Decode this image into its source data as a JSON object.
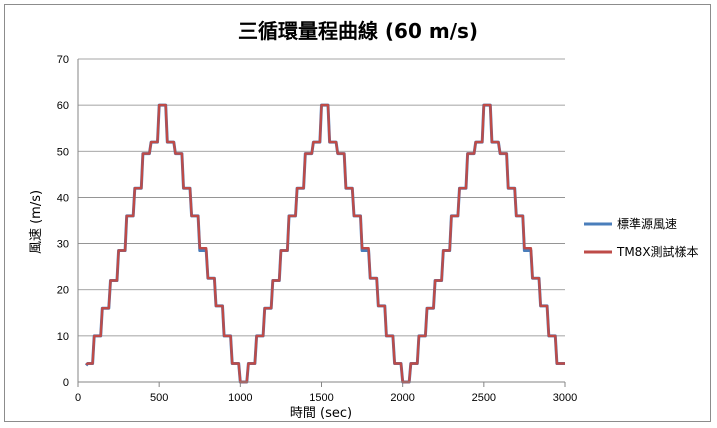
{
  "chart_data": {
    "type": "line",
    "title": "三循環量程曲線 (60 m/s)",
    "xlabel": "時間 (sec)",
    "ylabel": "風速 (m/s)",
    "xlim": [
      0,
      3000
    ],
    "ylim": [
      0,
      70
    ],
    "xticks": [
      "0",
      "500",
      "1000",
      "1500",
      "2000",
      "2500",
      "3000"
    ],
    "yticks": [
      "0",
      "10",
      "20",
      "30",
      "40",
      "50",
      "60",
      "70"
    ],
    "grid": "horizontal",
    "legend": "right",
    "colors": {
      "series1": "#4a7ebb",
      "series2": "#be4b48"
    },
    "series": [
      {
        "name": "標準源風速",
        "color": "#4a7ebb",
        "x": [
          50,
          60,
          90,
          100,
          140,
          150,
          190,
          200,
          240,
          250,
          290,
          300,
          340,
          350,
          390,
          400,
          440,
          450,
          490,
          500,
          540,
          550,
          590,
          600,
          640,
          650,
          690,
          700,
          740,
          750,
          790,
          800,
          840,
          850,
          890,
          900,
          940,
          950,
          990,
          1000,
          1040,
          1050,
          1090,
          1100,
          1140,
          1150,
          1190,
          1200,
          1240,
          1250,
          1290,
          1300,
          1340,
          1350,
          1390,
          1400,
          1440,
          1450,
          1490,
          1500,
          1540,
          1550,
          1590,
          1600,
          1640,
          1650,
          1690,
          1700,
          1740,
          1750,
          1790,
          1800,
          1840,
          1850,
          1890,
          1900,
          1940,
          1950,
          1990,
          2000,
          2040,
          2050,
          2090,
          2100,
          2140,
          2150,
          2190,
          2200,
          2240,
          2250,
          2290,
          2300,
          2340,
          2350,
          2390,
          2400,
          2440,
          2450,
          2490,
          2500,
          2540,
          2550,
          2590,
          2600,
          2640,
          2650,
          2690,
          2700,
          2740,
          2750,
          2790,
          2800,
          2840,
          2850,
          2890,
          2900,
          2940,
          2950,
          2990,
          3000
        ],
        "y": [
          3.6,
          4,
          4,
          10,
          10,
          16,
          16,
          22,
          22,
          28.5,
          28.5,
          36,
          36,
          42,
          42,
          49.5,
          49.5,
          52,
          52,
          60,
          60,
          52,
          52,
          49.5,
          49.5,
          42,
          42,
          36,
          36,
          28.5,
          28.5,
          22.5,
          22.5,
          16.5,
          16.5,
          10,
          10,
          4,
          4,
          0,
          0,
          4,
          4,
          10,
          10,
          16,
          16,
          22,
          22,
          28.5,
          28.5,
          36,
          36,
          42,
          42,
          49.5,
          49.5,
          52,
          52,
          60,
          60,
          52,
          52,
          49.5,
          49.5,
          42,
          42,
          36,
          36,
          28.5,
          28.5,
          22.5,
          22.5,
          16.5,
          16.5,
          10,
          10,
          4,
          4,
          0,
          0,
          4,
          4,
          10,
          10,
          16,
          16,
          22,
          22,
          28.5,
          28.5,
          36,
          36,
          42,
          42,
          49.5,
          49.5,
          52,
          52,
          60,
          60,
          52,
          52,
          49.5,
          49.5,
          42,
          42,
          36,
          36,
          28.5,
          28.5,
          22.5,
          22.5,
          16.5,
          16.5,
          10,
          10,
          4,
          4,
          4
        ]
      },
      {
        "name": "TM8X測試樣本",
        "color": "#be4b48",
        "x": [
          50,
          60,
          90,
          100,
          140,
          150,
          190,
          200,
          240,
          250,
          290,
          300,
          340,
          350,
          390,
          400,
          440,
          450,
          490,
          500,
          540,
          550,
          590,
          600,
          640,
          650,
          690,
          700,
          740,
          750,
          790,
          800,
          840,
          850,
          890,
          900,
          940,
          950,
          990,
          1000,
          1040,
          1050,
          1090,
          1100,
          1140,
          1150,
          1190,
          1200,
          1240,
          1250,
          1290,
          1300,
          1340,
          1350,
          1390,
          1400,
          1440,
          1450,
          1490,
          1500,
          1540,
          1550,
          1590,
          1600,
          1640,
          1650,
          1690,
          1700,
          1740,
          1750,
          1790,
          1800,
          1840,
          1850,
          1890,
          1900,
          1940,
          1950,
          1990,
          2000,
          2040,
          2050,
          2090,
          2100,
          2140,
          2150,
          2190,
          2200,
          2240,
          2250,
          2290,
          2300,
          2340,
          2350,
          2390,
          2400,
          2440,
          2450,
          2490,
          2500,
          2540,
          2550,
          2590,
          2600,
          2640,
          2650,
          2690,
          2700,
          2740,
          2750,
          2790,
          2800,
          2840,
          2850,
          2890,
          2900,
          2940,
          2950,
          2990,
          3000
        ],
        "y": [
          3.8,
          4,
          4,
          10,
          10,
          16,
          16,
          22,
          22,
          28.5,
          28.5,
          36,
          36,
          42,
          42,
          49.5,
          49.5,
          52,
          52,
          60,
          60,
          52,
          52,
          49.5,
          49.5,
          42,
          42,
          36,
          36,
          29,
          29,
          22.5,
          22.5,
          16.5,
          16.5,
          10,
          10,
          4,
          4,
          0,
          0,
          4,
          4,
          10,
          10,
          16,
          16,
          22,
          22,
          28.5,
          28.5,
          36,
          36,
          42,
          42,
          49.5,
          49.5,
          52,
          52,
          60,
          60,
          52,
          52,
          49.5,
          49.5,
          42,
          42,
          36,
          36,
          29,
          29,
          22.5,
          22.5,
          16.5,
          16.5,
          10,
          10,
          4,
          4,
          0,
          0,
          4,
          4,
          10,
          10,
          16,
          16,
          22,
          22,
          28.5,
          28.5,
          36,
          36,
          42,
          42,
          49.5,
          49.5,
          52,
          52,
          60,
          60,
          52,
          52,
          49.5,
          49.5,
          42,
          42,
          36,
          36,
          29,
          29,
          22.5,
          22.5,
          16.5,
          16.5,
          10,
          10,
          4,
          4,
          4
        ]
      }
    ]
  }
}
